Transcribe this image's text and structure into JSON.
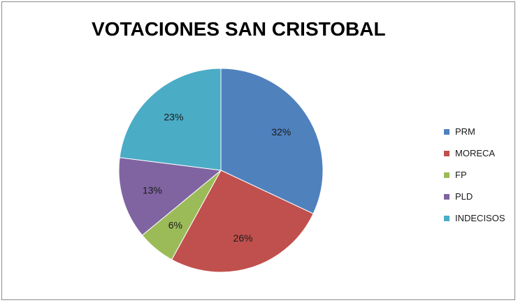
{
  "chart_data": {
    "type": "pie",
    "title": "VOTACIONES SAN CRISTOBAL",
    "legend_position": "right",
    "slices": [
      {
        "name": "PRM",
        "value": 32,
        "label": "32%",
        "color": "#4f81bd"
      },
      {
        "name": "MORECA",
        "value": 26,
        "label": "26%",
        "color": "#c0504d"
      },
      {
        "name": "FP",
        "value": 6,
        "label": "6%",
        "color": "#9bbb59"
      },
      {
        "name": "PLD",
        "value": 13,
        "label": "13%",
        "color": "#8064a2"
      },
      {
        "name": "INDECISOS",
        "value": 23,
        "label": "23%",
        "color": "#4bacc6"
      }
    ]
  }
}
